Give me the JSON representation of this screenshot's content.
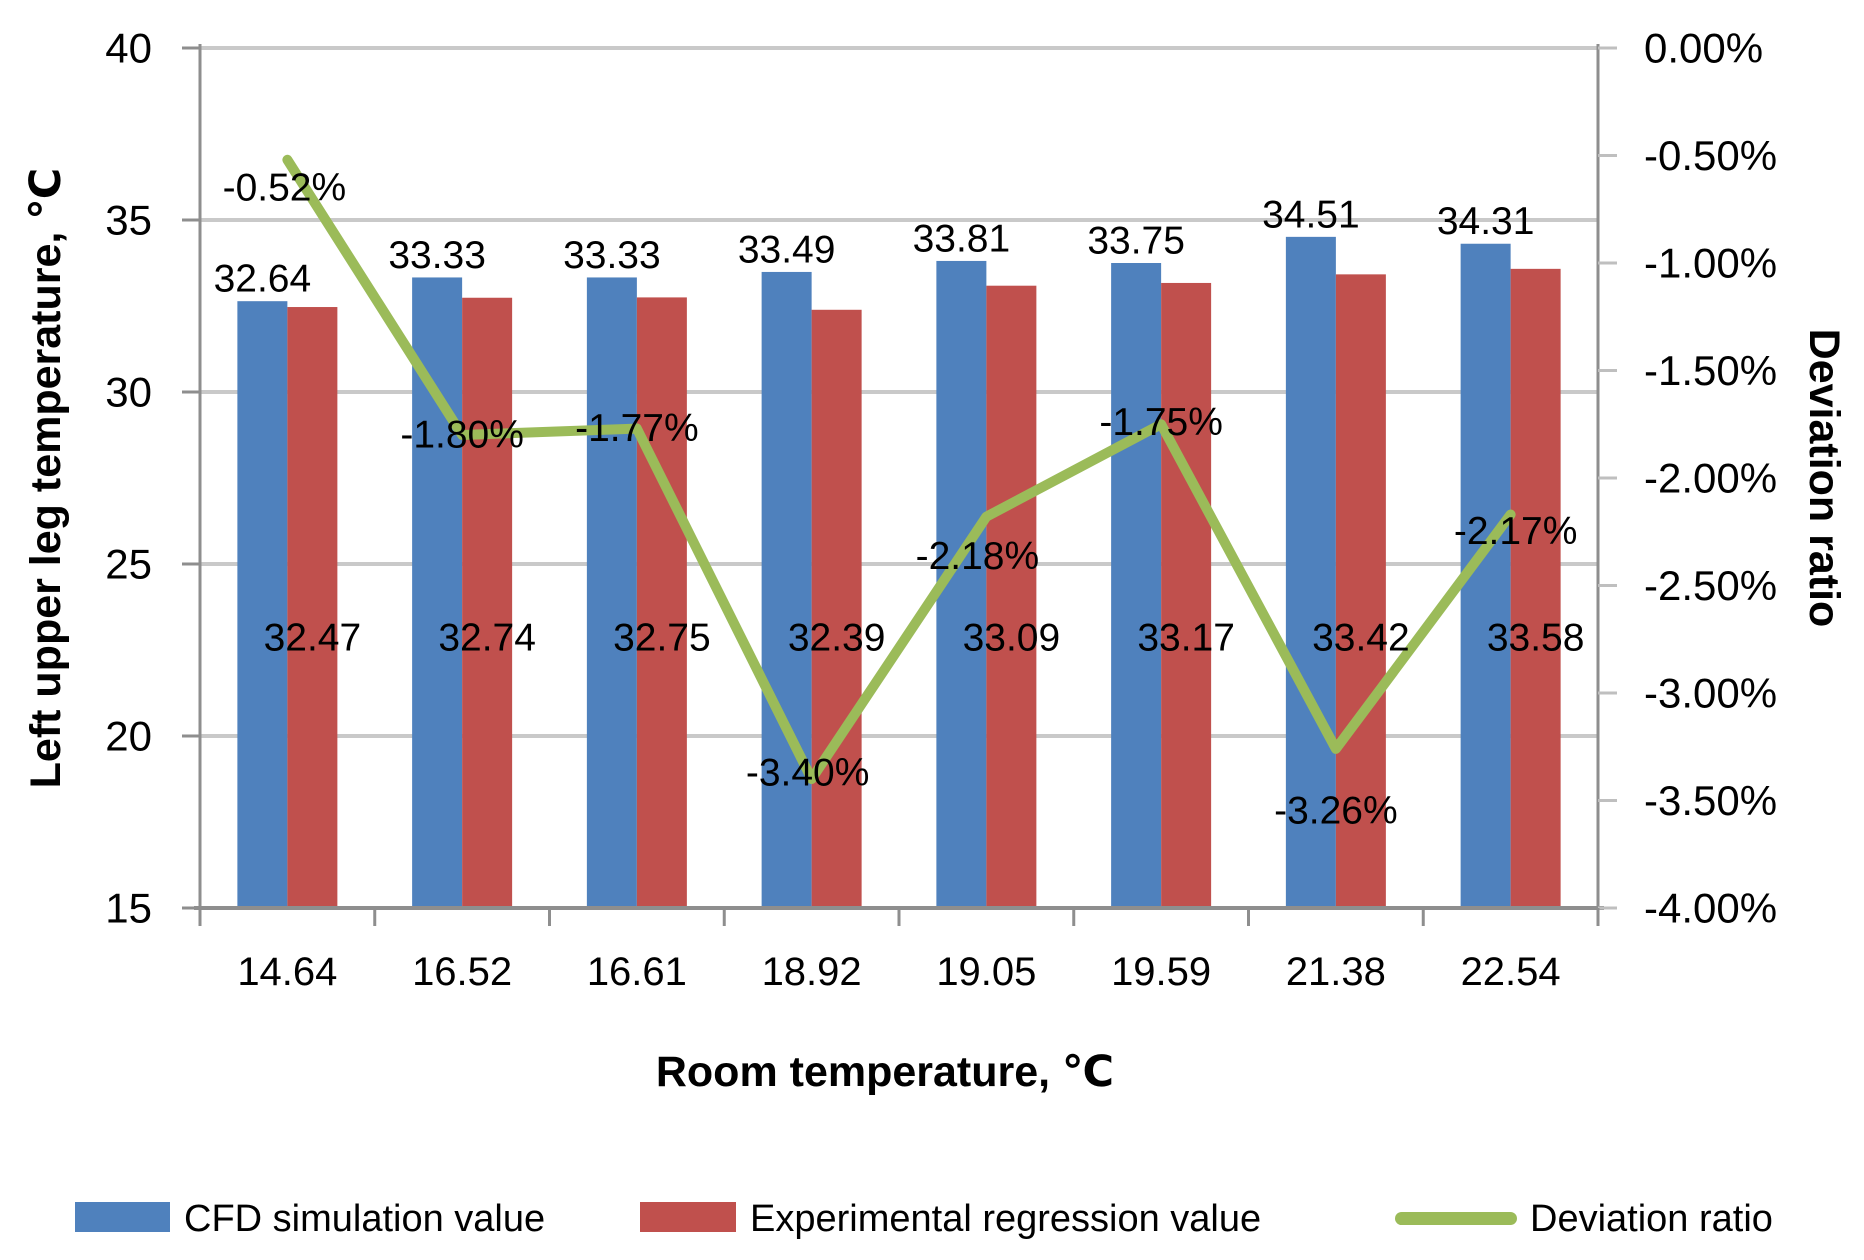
{
  "chart_data": {
    "type": "bar+line",
    "title": "",
    "categories": [
      "14.64",
      "16.52",
      "16.61",
      "18.92",
      "19.05",
      "19.59",
      "21.38",
      "22.54"
    ],
    "series": [
      {
        "name": "CFD simulation value",
        "type": "bar",
        "axis": "left",
        "color": "#4f81bd",
        "values": [
          32.64,
          33.33,
          33.33,
          33.49,
          33.81,
          33.75,
          34.51,
          34.31
        ],
        "labels": [
          "32.64",
          "33.33",
          "33.33",
          "33.49",
          "33.81",
          "33.75",
          "34.51",
          "34.31"
        ]
      },
      {
        "name": "Experimental regression value",
        "type": "bar",
        "axis": "left",
        "color": "#c0504d",
        "values": [
          32.47,
          32.74,
          32.75,
          32.39,
          33.09,
          33.17,
          33.42,
          33.58
        ],
        "labels": [
          "32.47",
          "32.74",
          "32.75",
          "32.39",
          "33.09",
          "33.17",
          "33.42",
          "33.58"
        ]
      },
      {
        "name": "Deviation ratio",
        "type": "line",
        "axis": "right",
        "color": "#9bbb59",
        "values": [
          -0.52,
          -1.8,
          -1.77,
          -3.4,
          -2.18,
          -1.75,
          -3.26,
          -2.17
        ],
        "labels": [
          "-0.52%",
          "-1.80%",
          "-1.77%",
          "-3.40%",
          "-2.18%",
          "-1.75%",
          "-3.26%",
          "-2.17%"
        ]
      }
    ],
    "left_axis": {
      "label": "Left upper leg temperature, ℃",
      "min": 15,
      "max": 40,
      "step": 5,
      "tick_labels": [
        "40",
        "35",
        "30",
        "25",
        "20",
        "15"
      ]
    },
    "right_axis": {
      "label": "Deviation ratio",
      "min": -4.0,
      "max": 0.0,
      "step": -0.5,
      "tick_labels": [
        "0.00%",
        "-0.50%",
        "-1.00%",
        "-1.50%",
        "-2.00%",
        "-2.50%",
        "-3.00%",
        "-3.50%",
        "-4.00%"
      ]
    },
    "x_axis": {
      "label": "Room temperature, ℃",
      "tick_labels": [
        "14.64",
        "16.52",
        "16.61",
        "18.92",
        "19.05",
        "19.59",
        "21.38",
        "22.54"
      ]
    },
    "legend_position": "bottom",
    "grid": true,
    "colors": {
      "bar_blue": "#4f81bd",
      "bar_red": "#c0504d",
      "line_green": "#9bbb59",
      "gridline": "#c9c9c9",
      "axis_line": "#8e8e8e",
      "right_tick": "#bfbfbf"
    }
  }
}
